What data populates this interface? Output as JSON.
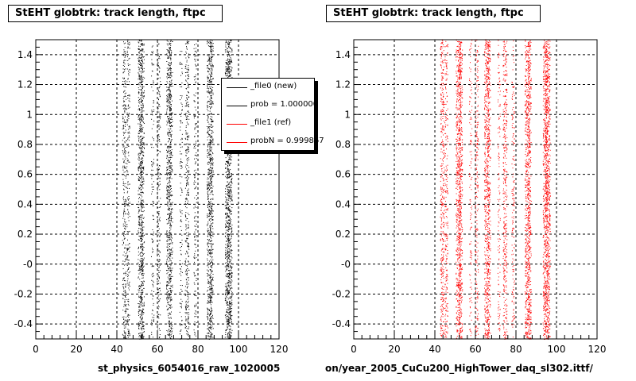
{
  "chart_data": [
    {
      "type": "scatter",
      "title": "StEHT globtrk: track length, ftpc",
      "xlabel": "st_physics_6054016_raw_1020005",
      "ylabel": "",
      "xlim": [
        0,
        120
      ],
      "ylim": [
        -0.5,
        1.5
      ],
      "xticks": [
        "0",
        "20",
        "40",
        "60",
        "80",
        "100",
        "120"
      ],
      "yticks": [
        "-0.4",
        "-0.2",
        "-0",
        "0.2",
        "0.4",
        "0.6",
        "0.8",
        "1",
        "1.2",
        "1.4"
      ],
      "grid": true,
      "marker_color": "#000000",
      "bands_x": [
        43.5,
        45.5,
        51.5,
        52.5,
        57.5,
        60.5,
        65.5,
        66.5,
        71.5,
        74.5,
        78.5,
        85.5,
        86.5,
        94.5,
        95.5
      ],
      "band_density": [
        0.5,
        0.35,
        0.9,
        0.5,
        0.2,
        0.35,
        0.9,
        0.4,
        0.2,
        0.55,
        0.25,
        0.9,
        0.5,
        0.95,
        0.9
      ],
      "legend": {
        "placement": "top-right",
        "entries": [
          {
            "label": "_file0 (new)",
            "color": "#000000"
          },
          {
            "label": "prob = 1.000000",
            "color": "#000000"
          },
          {
            "label": "_file1 (ref)",
            "color": "#ff0000"
          },
          {
            "label": "probN = 0.999867",
            "color": "#ff0000"
          }
        ]
      }
    },
    {
      "type": "scatter",
      "title": "StEHT globtrk: track length, ftpc",
      "xlabel": "on/year_2005_CuCu200_HighTower_daq_sl302.ittf/",
      "ylabel": "",
      "xlim": [
        0,
        120
      ],
      "ylim": [
        -0.5,
        1.5
      ],
      "xticks": [
        "0",
        "20",
        "40",
        "60",
        "80",
        "100",
        "120"
      ],
      "yticks": [
        "-0.4",
        "-0.2",
        "-0",
        "0.2",
        "0.4",
        "0.6",
        "0.8",
        "1",
        "1.2",
        "1.4"
      ],
      "grid": true,
      "marker_color": "#ff0000",
      "bands_x": [
        43.5,
        45.5,
        51.5,
        52.5,
        57.5,
        60.5,
        65.5,
        66.5,
        71.5,
        74.5,
        78.5,
        85.5,
        86.5,
        94.5,
        95.5
      ],
      "band_density": [
        0.6,
        0.35,
        0.95,
        0.6,
        0.2,
        0.35,
        0.9,
        0.4,
        0.2,
        0.6,
        0.25,
        0.95,
        0.5,
        1.0,
        0.95
      ]
    }
  ]
}
